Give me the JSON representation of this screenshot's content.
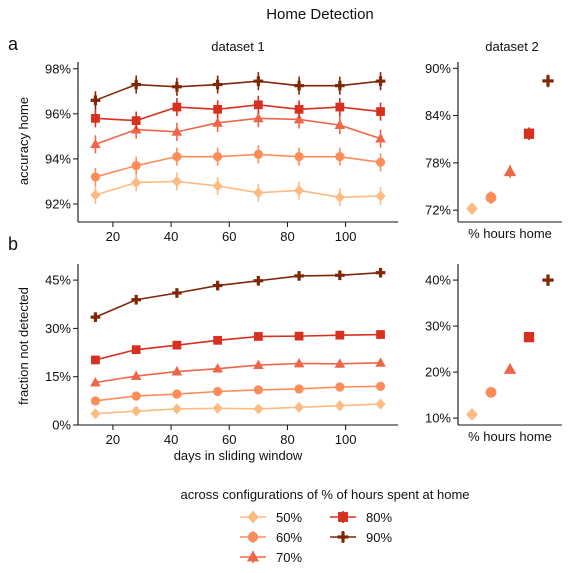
{
  "figure": {
    "title": "Home Detection",
    "panel_labels": [
      "a",
      "b"
    ],
    "legend_title": "across configurations of % of hours spent at home",
    "colors": {
      "50%": "#fdbb84",
      "60%": "#fc8d59",
      "70%": "#ef6548",
      "80%": "#d7301f",
      "90%": "#7f2704"
    }
  },
  "chart_data": [
    {
      "type": "line",
      "panel": "a",
      "title": "dataset 1",
      "xlabel": "",
      "ylabel": "accuracy home",
      "x": [
        14,
        28,
        42,
        56,
        70,
        84,
        98,
        112
      ],
      "xticks": [
        20,
        40,
        60,
        80,
        100
      ],
      "xlim": [
        8,
        118
      ],
      "ylim": [
        91.2,
        98.3
      ],
      "yticks": [
        92,
        94,
        96,
        98
      ],
      "ytick_labels": [
        "92%",
        "94%",
        "96%",
        "98%"
      ],
      "series": [
        {
          "name": "50%",
          "marker": "diamond",
          "values": [
            92.4,
            92.95,
            93.0,
            92.8,
            92.5,
            92.6,
            92.3,
            92.35
          ],
          "err": [
            0.4,
            0.4,
            0.4,
            0.4,
            0.4,
            0.4,
            0.4,
            0.4
          ]
        },
        {
          "name": "60%",
          "marker": "circle",
          "values": [
            93.2,
            93.7,
            94.1,
            94.1,
            94.2,
            94.1,
            94.1,
            93.85
          ],
          "err": [
            0.4,
            0.4,
            0.4,
            0.4,
            0.4,
            0.4,
            0.4,
            0.4
          ]
        },
        {
          "name": "70%",
          "marker": "triangle",
          "values": [
            94.65,
            95.3,
            95.2,
            95.6,
            95.8,
            95.75,
            95.5,
            94.9
          ],
          "err": [
            0.4,
            0.4,
            0.4,
            0.4,
            0.4,
            0.4,
            0.4,
            0.4
          ]
        },
        {
          "name": "80%",
          "marker": "square",
          "values": [
            95.8,
            95.7,
            96.3,
            96.2,
            96.4,
            96.2,
            96.3,
            96.1
          ],
          "err": [
            0.4,
            0.4,
            0.4,
            0.4,
            0.4,
            0.4,
            0.4,
            0.4
          ]
        },
        {
          "name": "90%",
          "marker": "plus",
          "values": [
            96.6,
            97.3,
            97.2,
            97.3,
            97.45,
            97.25,
            97.25,
            97.45
          ],
          "err": [
            0.4,
            0.4,
            0.4,
            0.4,
            0.4,
            0.4,
            0.4,
            0.4
          ]
        }
      ]
    },
    {
      "type": "scatter",
      "panel": "a",
      "title": "dataset 2",
      "xlabel": "% hours home",
      "ylabel": "",
      "categories": [
        "50%",
        "60%",
        "70%",
        "80%",
        "90%"
      ],
      "ylim": [
        70.5,
        90.8
      ],
      "yticks": [
        72,
        78,
        84,
        90
      ],
      "ytick_labels": [
        "72%",
        "78%",
        "84%",
        "90%"
      ],
      "series": [
        {
          "name": "50%",
          "marker": "diamond",
          "value": 72.2,
          "err": 0.7
        },
        {
          "name": "60%",
          "marker": "circle",
          "value": 73.6,
          "err": 0.8
        },
        {
          "name": "70%",
          "marker": "triangle",
          "value": 76.9,
          "err": 0.8
        },
        {
          "name": "80%",
          "marker": "square",
          "value": 81.7,
          "err": 0.8
        },
        {
          "name": "90%",
          "marker": "plus",
          "value": 88.4,
          "err": 0.8
        }
      ]
    },
    {
      "type": "line",
      "panel": "b",
      "title": "",
      "xlabel": "days in sliding window",
      "ylabel": "fraction not detected",
      "x": [
        14,
        28,
        42,
        56,
        70,
        84,
        98,
        112
      ],
      "xticks": [
        20,
        40,
        60,
        80,
        100
      ],
      "xlim": [
        8,
        118
      ],
      "ylim": [
        0,
        50
      ],
      "yticks": [
        0,
        15,
        30,
        45
      ],
      "ytick_labels": [
        "0%",
        "15%",
        "30%",
        "45%"
      ],
      "series": [
        {
          "name": "50%",
          "marker": "diamond",
          "values": [
            3.5,
            4.3,
            5.0,
            5.2,
            5.0,
            5.5,
            6.0,
            6.5
          ],
          "err": [
            0.6,
            0.6,
            0.6,
            0.6,
            0.6,
            0.6,
            0.6,
            0.6
          ]
        },
        {
          "name": "60%",
          "marker": "circle",
          "values": [
            7.5,
            9.0,
            9.6,
            10.4,
            10.9,
            11.2,
            11.8,
            12.0
          ],
          "err": [
            0.6,
            0.6,
            0.6,
            0.6,
            0.6,
            0.6,
            0.6,
            0.6
          ]
        },
        {
          "name": "70%",
          "marker": "triangle",
          "values": [
            13.2,
            15.2,
            16.6,
            17.5,
            18.6,
            19.1,
            19.0,
            19.3
          ],
          "err": [
            0.6,
            0.6,
            0.6,
            0.6,
            0.6,
            0.6,
            0.6,
            0.6
          ]
        },
        {
          "name": "80%",
          "marker": "square",
          "values": [
            20.2,
            23.4,
            24.8,
            26.3,
            27.5,
            27.6,
            27.9,
            28.1
          ],
          "err": [
            0.6,
            0.6,
            0.6,
            0.6,
            0.6,
            0.6,
            0.6,
            0.6
          ]
        },
        {
          "name": "90%",
          "marker": "plus",
          "values": [
            33.5,
            38.9,
            41.0,
            43.3,
            44.8,
            46.3,
            46.5,
            47.3
          ],
          "err": [
            0.6,
            0.6,
            0.6,
            0.6,
            0.6,
            0.6,
            0.6,
            0.6
          ]
        }
      ]
    },
    {
      "type": "scatter",
      "panel": "b",
      "title": "",
      "xlabel": "% hours home",
      "ylabel": "",
      "categories": [
        "50%",
        "60%",
        "70%",
        "80%",
        "90%"
      ],
      "ylim": [
        8.5,
        43.5
      ],
      "yticks": [
        10,
        20,
        30,
        40
      ],
      "ytick_labels": [
        "10%",
        "20%",
        "30%",
        "40%"
      ],
      "series": [
        {
          "name": "50%",
          "marker": "diamond",
          "value": 10.8,
          "err": 0.8
        },
        {
          "name": "60%",
          "marker": "circle",
          "value": 15.6,
          "err": 0.8
        },
        {
          "name": "70%",
          "marker": "triangle",
          "value": 20.6,
          "err": 0.8
        },
        {
          "name": "80%",
          "marker": "square",
          "value": 27.6,
          "err": 0.9
        },
        {
          "name": "90%",
          "marker": "plus",
          "value": 40.0,
          "err": 1.0
        }
      ]
    }
  ]
}
